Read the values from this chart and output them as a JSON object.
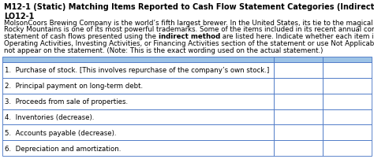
{
  "title_line1": "M12-1 (Static) Matching Items Reported to Cash Flow Statement Categories (Indirect Method)",
  "title_line2": "LO12-1",
  "body_lines": [
    [
      "MolsonCoors Brewing Company is the world’s fifth largest brewer. In the United States, its tie to the magical appeal of the"
    ],
    [
      "Rocky Mountains is one of its most powerful trademarks. Some of the items included in its recent annual consolidated"
    ],
    [
      "statement of cash flows presented using the ",
      "indirect method",
      " are listed here. Indicate whether each item is disclosed in the"
    ],
    [
      "Operating Activities, Investing Activities, or Financing Activities section of the statement or use Not Applicable if the item does"
    ],
    [
      "not appear on the statement. (Note: This is the exact wording used on the actual statement.)"
    ]
  ],
  "table_items": [
    "1.  Purchase of stock. [This involves repurchase of the company’s own stock.]",
    "2.  Principal payment on long-term debt.",
    "3.  Proceeds from sale of properties.",
    "4.  Inventories (decrease).",
    "5.  Accounts payable (decrease).",
    "6.  Depreciation and amortization."
  ],
  "header_color": "#9dc3e6",
  "row_color_odd": "#ffffff",
  "row_color_even": "#ffffff",
  "border_color": "#4472c4",
  "bg_color": "#ffffff",
  "title_fontsize": 7.0,
  "body_fontsize": 6.2,
  "table_fontsize": 6.2,
  "fig_width": 4.74,
  "fig_height": 2.03,
  "dpi": 100
}
